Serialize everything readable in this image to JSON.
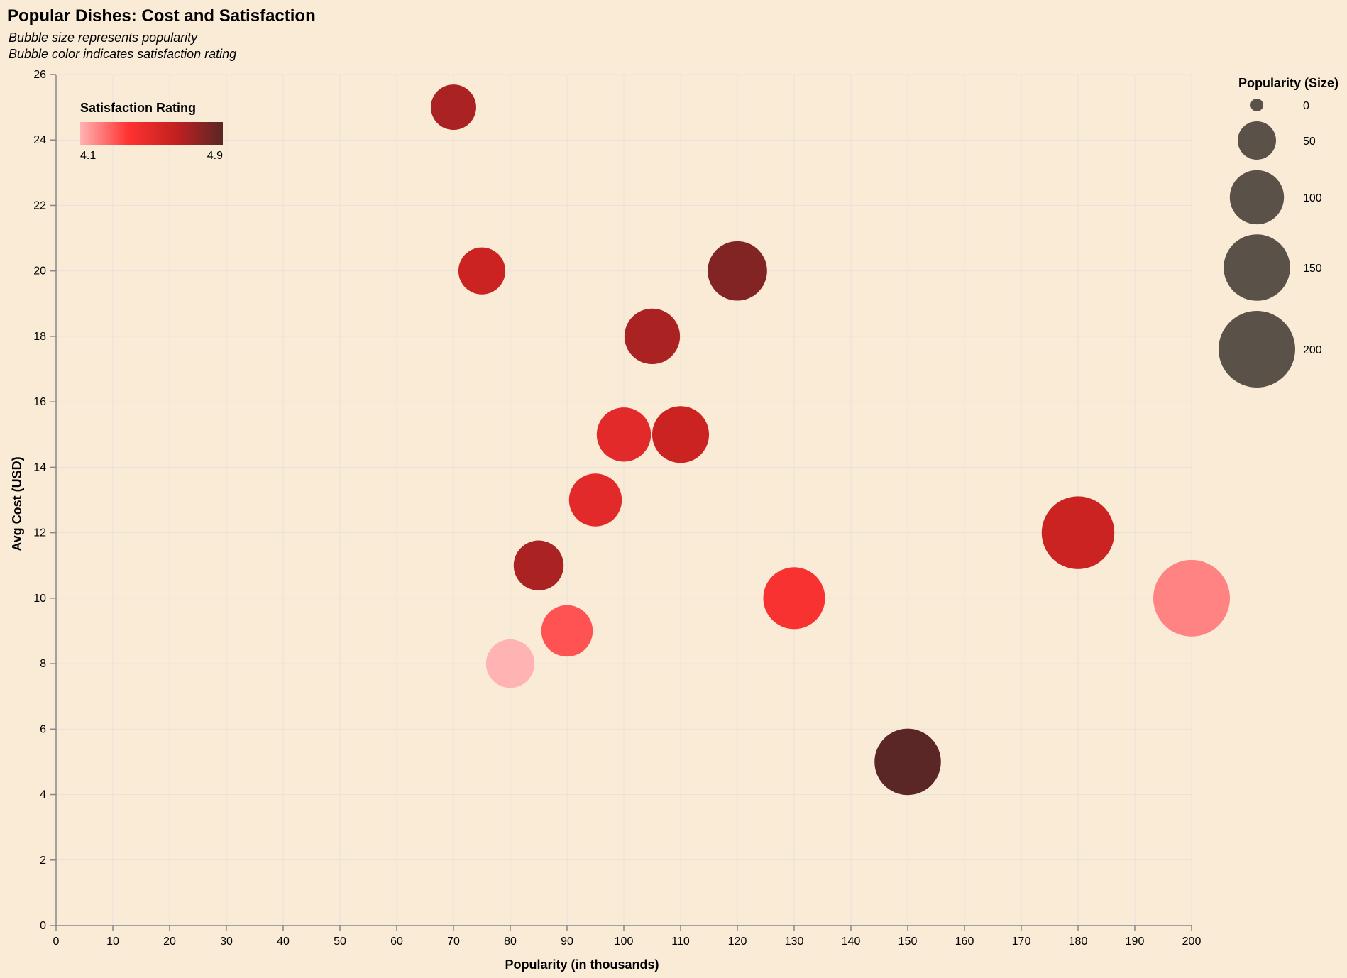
{
  "chart_data": {
    "type": "scatter",
    "title": "Popular Dishes: Cost and Satisfaction",
    "subtitle": [
      "Bubble size represents popularity",
      "Bubble color indicates satisfaction rating"
    ],
    "xlabel": "Popularity (in thousands)",
    "ylabel": "Avg Cost (USD)",
    "xlim": [
      0,
      200
    ],
    "ylim": [
      0,
      26
    ],
    "xticks": [
      0,
      10,
      20,
      30,
      40,
      50,
      60,
      70,
      80,
      90,
      100,
      110,
      120,
      130,
      140,
      150,
      160,
      170,
      180,
      190,
      200
    ],
    "yticks": [
      0,
      2,
      4,
      6,
      8,
      10,
      12,
      14,
      16,
      18,
      20,
      22,
      24,
      26
    ],
    "grid": true,
    "points": [
      {
        "popularity": 70,
        "avg_cost": 25,
        "satisfaction": 4.7
      },
      {
        "popularity": 75,
        "avg_cost": 20,
        "satisfaction": 4.6
      },
      {
        "popularity": 120,
        "avg_cost": 20,
        "satisfaction": 4.8
      },
      {
        "popularity": 105,
        "avg_cost": 18,
        "satisfaction": 4.7
      },
      {
        "popularity": 100,
        "avg_cost": 15,
        "satisfaction": 4.5
      },
      {
        "popularity": 110,
        "avg_cost": 15,
        "satisfaction": 4.6
      },
      {
        "popularity": 95,
        "avg_cost": 13,
        "satisfaction": 4.5
      },
      {
        "popularity": 85,
        "avg_cost": 11,
        "satisfaction": 4.7
      },
      {
        "popularity": 180,
        "avg_cost": 12,
        "satisfaction": 4.6
      },
      {
        "popularity": 130,
        "avg_cost": 10,
        "satisfaction": 4.4
      },
      {
        "popularity": 200,
        "avg_cost": 10,
        "satisfaction": 4.2
      },
      {
        "popularity": 90,
        "avg_cost": 9,
        "satisfaction": 4.3
      },
      {
        "popularity": 80,
        "avg_cost": 8,
        "satisfaction": 4.1
      },
      {
        "popularity": 150,
        "avg_cost": 5,
        "satisfaction": 4.9
      }
    ],
    "color_legend": {
      "title": "Satisfaction Rating",
      "min_label": "4.1",
      "max_label": "4.9",
      "min": 4.1,
      "max": 4.9,
      "stops": [
        "#ffb3b3",
        "#ff3333",
        "#c42020",
        "#5a2626"
      ],
      "placement": "top-left"
    },
    "size_legend": {
      "title": "Popularity (Size)",
      "values": [
        0,
        50,
        100,
        150,
        200
      ],
      "labels": [
        "0",
        "50",
        "100",
        "150",
        "200"
      ],
      "color": "#5a5248",
      "placement": "top-right"
    },
    "background": "#faebd7"
  }
}
